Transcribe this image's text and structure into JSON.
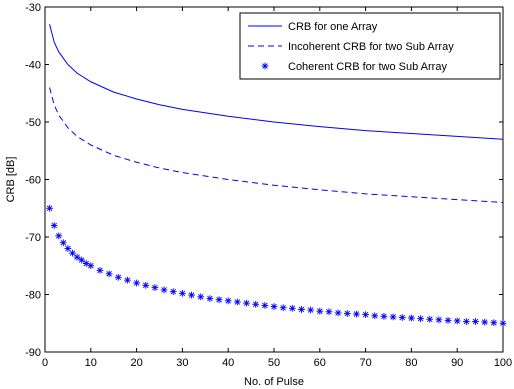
{
  "chart_data": {
    "type": "line",
    "title": "",
    "xlabel": "No. of Pulse",
    "ylabel": "CRB [dB]",
    "xlim": [
      0,
      100
    ],
    "ylim": [
      -90,
      -30
    ],
    "xticks": [
      0,
      10,
      20,
      30,
      40,
      50,
      60,
      70,
      80,
      90,
      100
    ],
    "yticks": [
      -90,
      -80,
      -70,
      -60,
      -50,
      -40,
      -30
    ],
    "grid": false,
    "legend_position": "top-right",
    "colors": {
      "series": "#0000ff",
      "axes": "#000000",
      "background": "#ffffff"
    },
    "series": [
      {
        "name": "CRB for one Array",
        "style": "solid",
        "x": [
          1,
          2,
          3,
          5,
          7,
          10,
          15,
          20,
          25,
          30,
          40,
          50,
          60,
          70,
          80,
          90,
          100
        ],
        "y": [
          -33,
          -36.1,
          -37.8,
          -40.0,
          -41.5,
          -43.0,
          -44.8,
          -46.0,
          -47.0,
          -47.8,
          -49.0,
          -50.0,
          -50.8,
          -51.5,
          -52.0,
          -52.5,
          -53.0
        ]
      },
      {
        "name": "Incoherent CRB for two Sub Array",
        "style": "dashed",
        "x": [
          1,
          2,
          3,
          5,
          7,
          10,
          15,
          20,
          25,
          30,
          40,
          50,
          60,
          70,
          80,
          90,
          100
        ],
        "y": [
          -44.0,
          -47.0,
          -48.8,
          -51.0,
          -52.5,
          -54.0,
          -55.8,
          -57.0,
          -58.0,
          -58.8,
          -60.0,
          -61.0,
          -61.8,
          -62.5,
          -63.0,
          -63.5,
          -64.0
        ]
      },
      {
        "name": "Coherent CRB for two Sub Array",
        "style": "markers",
        "marker": "*",
        "x": [
          1,
          2,
          3,
          4,
          5,
          6,
          7,
          8,
          9,
          10,
          12,
          14,
          16,
          18,
          20,
          22,
          24,
          26,
          28,
          30,
          32,
          34,
          36,
          38,
          40,
          42,
          44,
          46,
          48,
          50,
          52,
          54,
          56,
          58,
          60,
          62,
          64,
          66,
          68,
          70,
          72,
          74,
          76,
          78,
          80,
          82,
          84,
          86,
          88,
          90,
          92,
          94,
          96,
          98,
          100
        ],
        "y": [
          -65.0,
          -68.0,
          -69.8,
          -71.0,
          -72.0,
          -72.8,
          -73.5,
          -74.0,
          -74.6,
          -75.0,
          -75.8,
          -76.4,
          -77.0,
          -77.5,
          -78.0,
          -78.4,
          -78.8,
          -79.2,
          -79.5,
          -79.8,
          -80.1,
          -80.4,
          -80.7,
          -80.9,
          -81.1,
          -81.3,
          -81.5,
          -81.7,
          -81.9,
          -82.1,
          -82.3,
          -82.4,
          -82.6,
          -82.7,
          -82.9,
          -83.0,
          -83.2,
          -83.3,
          -83.4,
          -83.5,
          -83.7,
          -83.8,
          -83.9,
          -84.0,
          -84.1,
          -84.2,
          -84.3,
          -84.4,
          -84.5,
          -84.6,
          -84.7,
          -84.7,
          -84.8,
          -84.9,
          -85.0
        ]
      }
    ]
  }
}
